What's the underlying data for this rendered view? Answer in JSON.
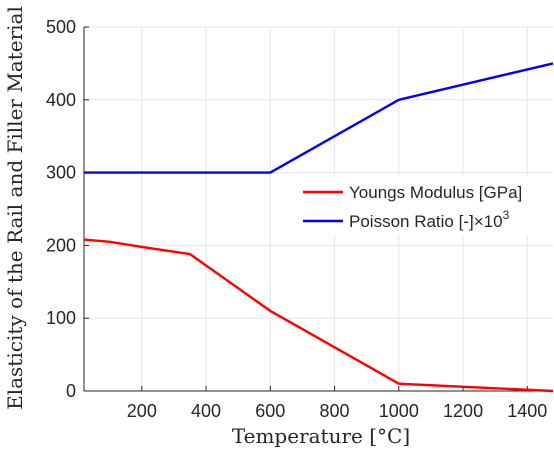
{
  "chart_data": {
    "type": "line",
    "xlabel": "Temperature [°C]",
    "ylabel": "Elasticity of the Rail and Filler Material",
    "xlim": [
      20,
      1480
    ],
    "ylim": [
      0,
      500
    ],
    "xticks": [
      200,
      400,
      600,
      800,
      1000,
      1200,
      1400
    ],
    "yticks": [
      0,
      100,
      200,
      300,
      400,
      500
    ],
    "grid": true,
    "legend_position": "center-right",
    "series": [
      {
        "name": "Youngs Modulus [GPa]",
        "color": "#ff0000",
        "x": [
          20,
          100,
          200,
          350,
          600,
          1000,
          1480
        ],
        "y": [
          208,
          205,
          198,
          188,
          110,
          10,
          0
        ]
      },
      {
        "name": "Poisson Ratio [-]",
        "name_suffix": "×10",
        "name_exponent": "3",
        "color": "#0000ff",
        "x": [
          20,
          600,
          1000,
          1480
        ],
        "y": [
          300,
          300,
          400,
          450
        ]
      }
    ]
  }
}
